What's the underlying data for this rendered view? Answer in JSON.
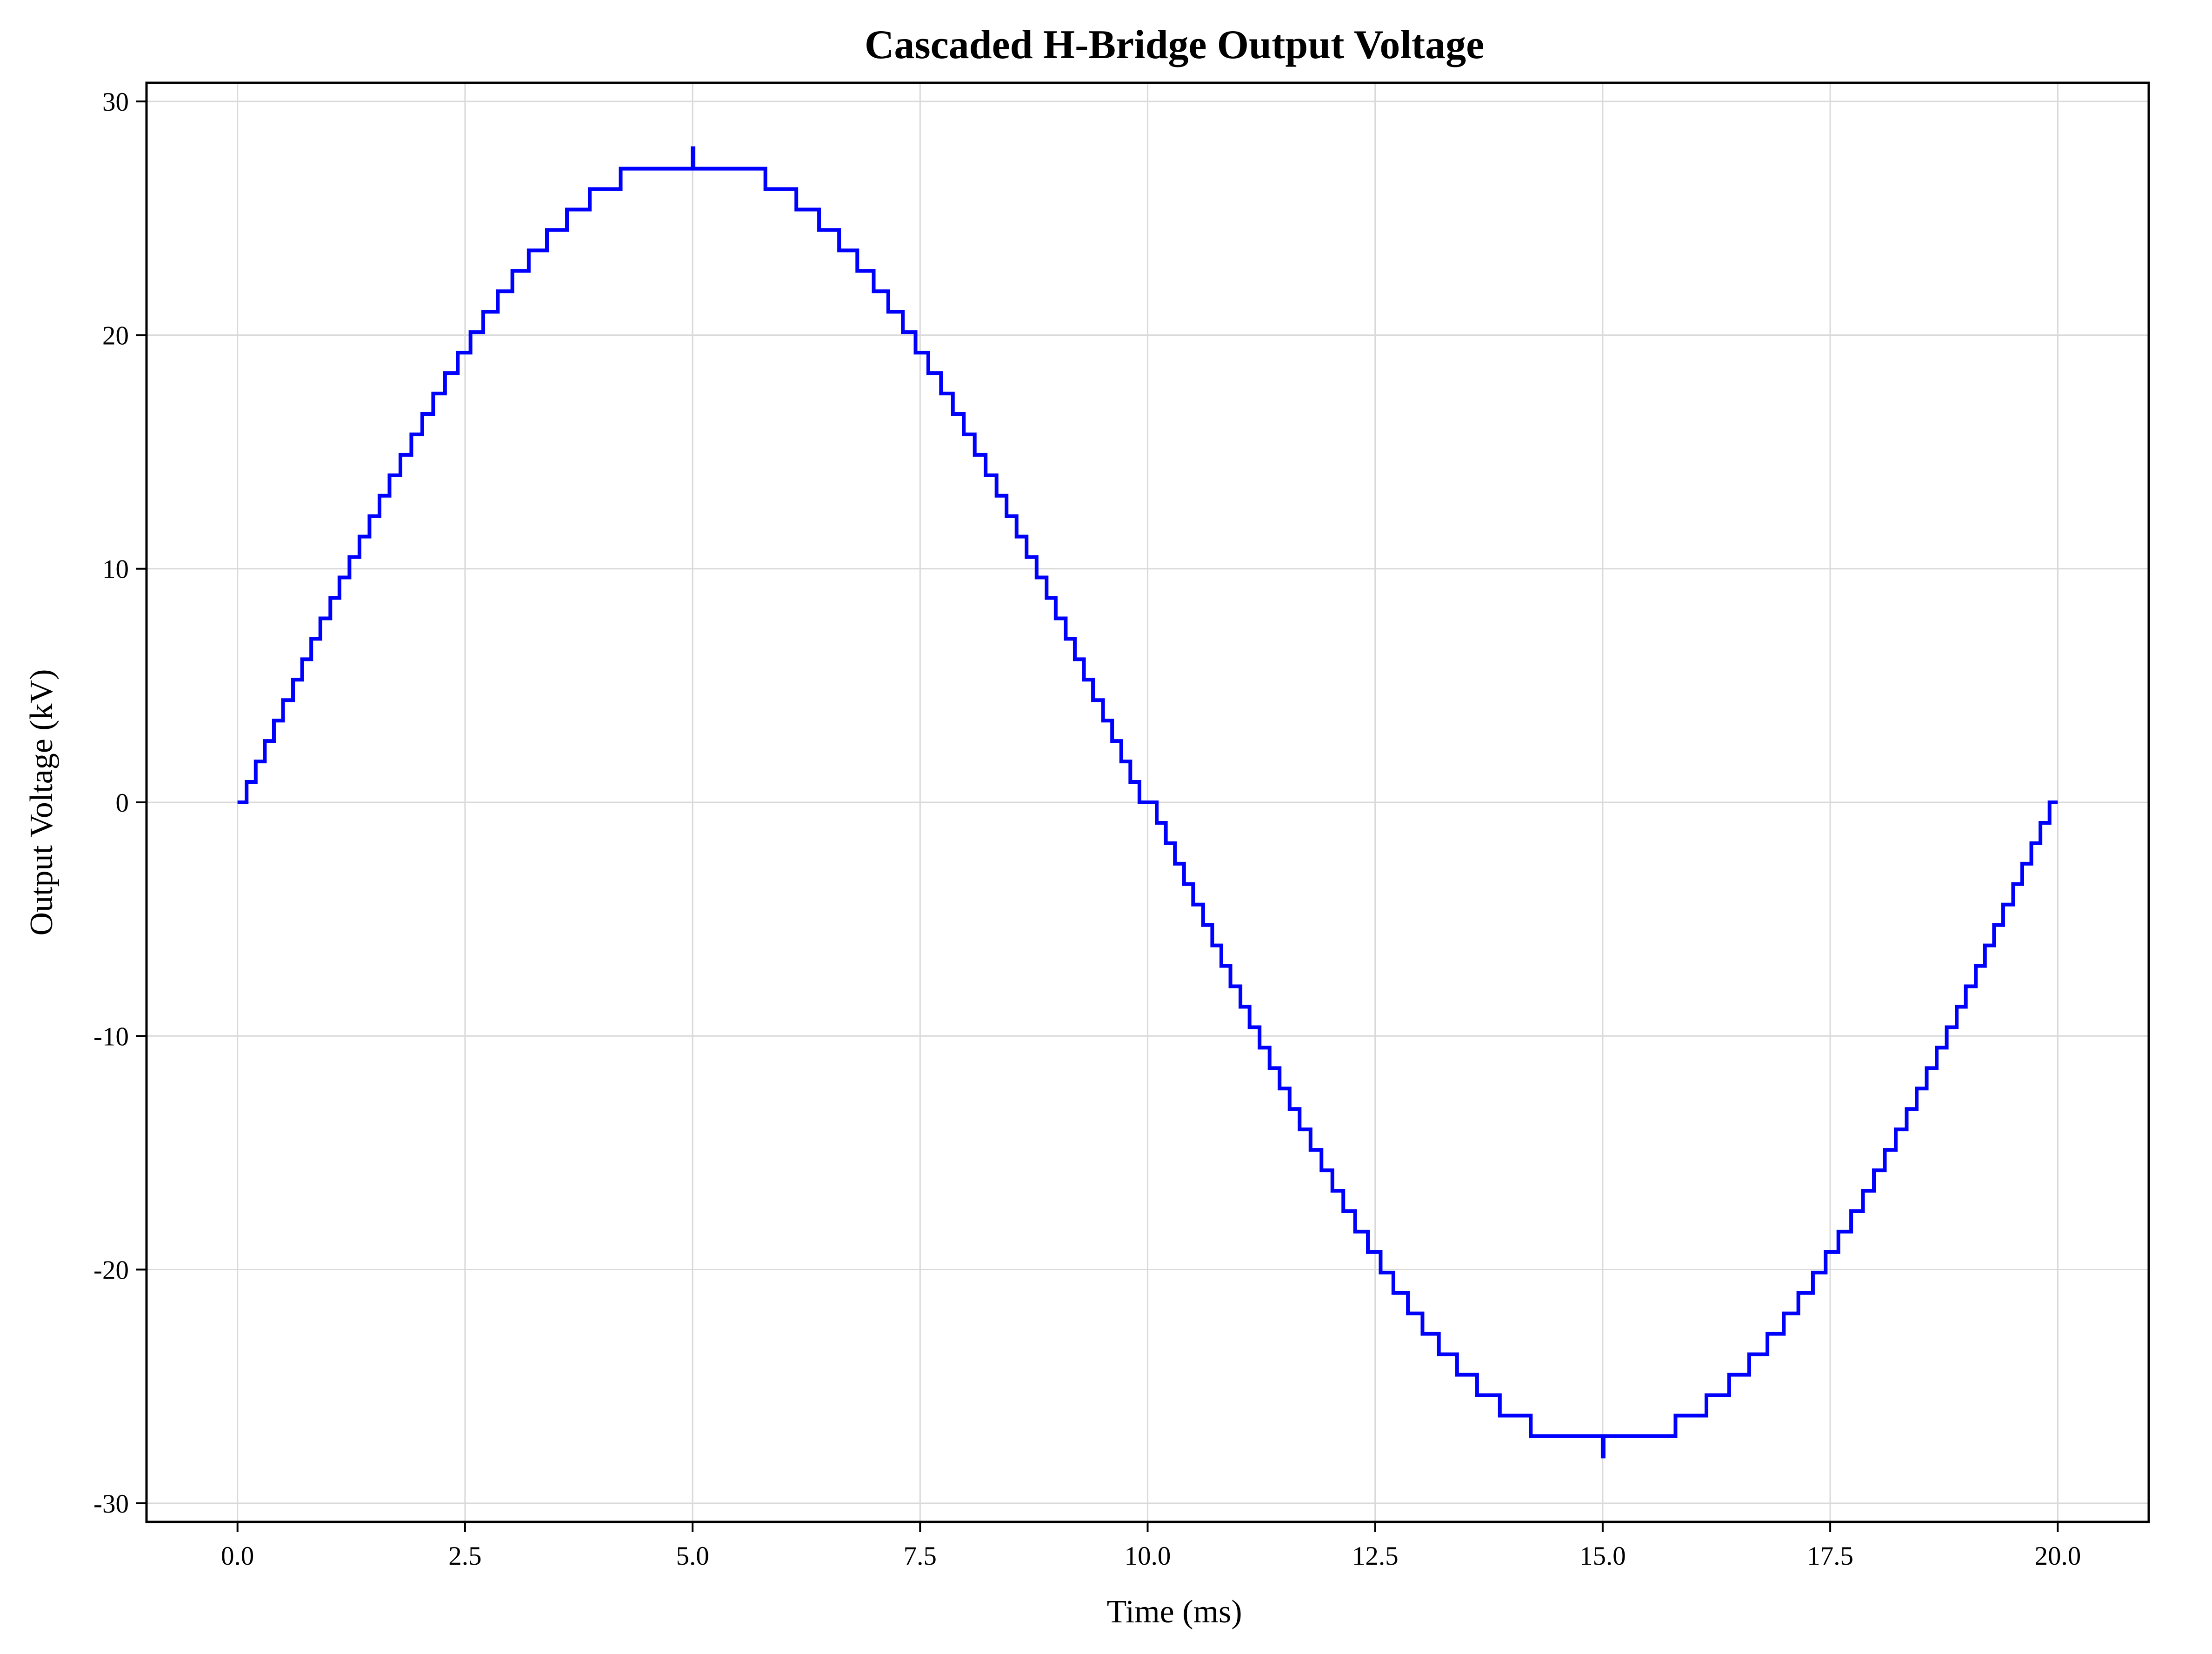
{
  "chart_data": {
    "type": "line",
    "title": "Cascaded H-Bridge Output Voltage",
    "xlabel": "Time (ms)",
    "ylabel": "Output Voltage (kV)",
    "xlim": [
      -1.0,
      21.0
    ],
    "ylim": [
      -30.8,
      30.8
    ],
    "xticks": [
      0.0,
      2.5,
      5.0,
      7.5,
      10.0,
      12.5,
      15.0,
      17.5,
      20.0
    ],
    "xtick_labels": [
      "0.0",
      "2.5",
      "5.0",
      "7.5",
      "10.0",
      "12.5",
      "15.0",
      "17.5",
      "20.0"
    ],
    "yticks": [
      -30,
      -20,
      -10,
      0,
      10,
      20,
      30
    ],
    "ytick_labels": [
      "-30",
      "-20",
      "-10",
      "0",
      "10",
      "20",
      "30"
    ],
    "grid": true,
    "line_style": "step",
    "waveform": {
      "shape": "sine",
      "period_ms": 20.0,
      "amplitude_kv": 28.0,
      "levels_per_polarity": 32,
      "level_step_kv": 0.875
    },
    "series": [
      {
        "color": "#0000ff"
      }
    ]
  }
}
